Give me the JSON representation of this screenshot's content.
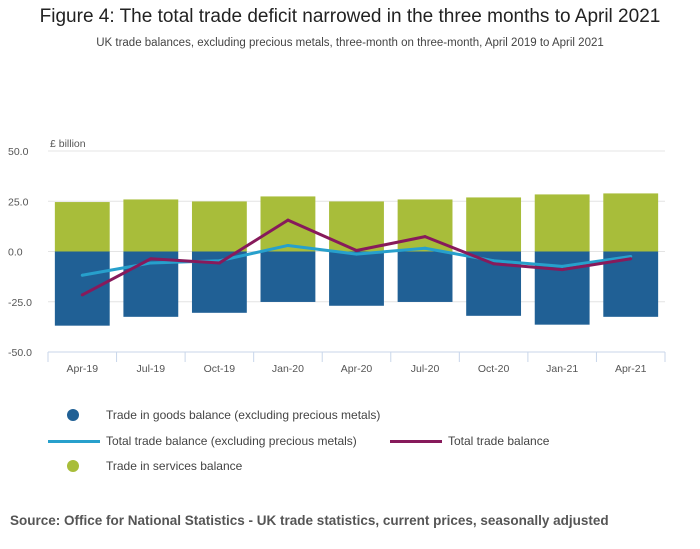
{
  "title": "Figure 4: The total trade deficit narrowed in the three months to April 2021",
  "subtitle": "UK trade balances, excluding precious metals, three-month on three-month, April 2019 to April 2021",
  "source": "Source: Office for National Statistics - UK trade statistics, current prices, seasonally adjusted",
  "chart_data": {
    "type": "bar",
    "stacked": true,
    "ylabel": "£ billion",
    "ylim": [
      -50,
      50
    ],
    "yticks": [
      "50.0",
      "25.0",
      "0.0",
      "-25.0",
      "-50.0"
    ],
    "yticks_values": [
      50,
      25,
      0,
      -25,
      -50
    ],
    "categories": [
      "Apr-19",
      "Jul-19",
      "Oct-19",
      "Jan-20",
      "Apr-20",
      "Jul-20",
      "Oct-20",
      "Jan-21",
      "Apr-21"
    ],
    "series": [
      {
        "name": "Trade in goods balance (excluding precious metals)",
        "type": "bar",
        "color": "#206095",
        "values": [
          -36.9,
          -32.5,
          -30.5,
          -25.1,
          -27.0,
          -25.1,
          -32.0,
          -36.4,
          -32.5
        ]
      },
      {
        "name": "Trade in services balance",
        "type": "bar",
        "color": "#a8bd3a",
        "values": [
          24.6,
          25.9,
          24.9,
          27.4,
          24.9,
          25.9,
          26.9,
          28.4,
          28.9
        ]
      },
      {
        "name": "Total trade balance (excluding precious metals)",
        "type": "line",
        "color": "#27a0cc",
        "values": [
          -11.8,
          -5.7,
          -4.6,
          3.0,
          -1.3,
          1.6,
          -4.6,
          -7.4,
          -2.5
        ]
      },
      {
        "name": "Total trade balance",
        "type": "line",
        "color": "#871a5b",
        "values": [
          -21.6,
          -3.6,
          -5.7,
          15.6,
          0.5,
          7.4,
          -6.1,
          -9.0,
          -3.6
        ]
      }
    ],
    "grid": true,
    "legend": "bottom"
  }
}
